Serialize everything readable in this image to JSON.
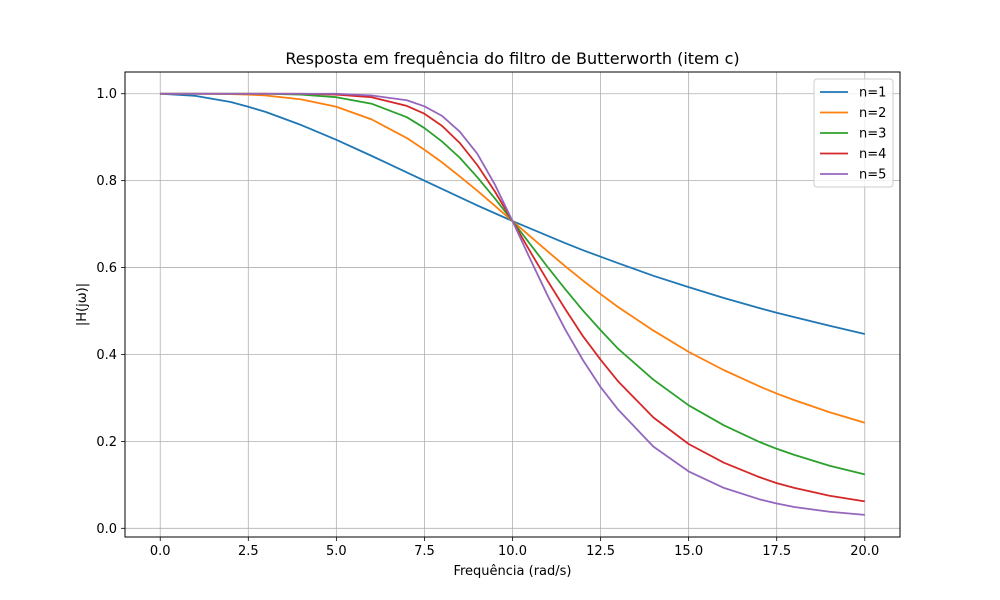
{
  "chart_data": {
    "type": "line",
    "title": "Resposta em frequência do filtro de Butterworth (item c)",
    "xlabel": "Frequência (rad/s)",
    "ylabel": "|H(jω)|",
    "xlim": [
      -1.0,
      21.0
    ],
    "ylim": [
      -0.02,
      1.05
    ],
    "xticks": [
      0.0,
      2.5,
      5.0,
      7.5,
      10.0,
      12.5,
      15.0,
      17.5,
      20.0
    ],
    "xtick_labels": [
      "0.0",
      "2.5",
      "5.0",
      "7.5",
      "10.0",
      "12.5",
      "15.0",
      "17.5",
      "20.0"
    ],
    "yticks": [
      0.0,
      0.2,
      0.4,
      0.6,
      0.8,
      1.0
    ],
    "ytick_labels": [
      "0.0",
      "0.2",
      "0.4",
      "0.6",
      "0.8",
      "1.0"
    ],
    "grid": true,
    "legend_position": "top-right",
    "x": [
      0.0,
      1.0,
      2.0,
      2.5,
      3.0,
      4.0,
      5.0,
      6.0,
      7.0,
      7.5,
      8.0,
      8.5,
      9.0,
      9.5,
      10.0,
      10.5,
      11.0,
      11.5,
      12.0,
      12.5,
      13.0,
      14.0,
      15.0,
      16.0,
      17.0,
      17.5,
      18.0,
      19.0,
      20.0
    ],
    "series": [
      {
        "name": "n=1",
        "color": "#1f77b4",
        "values": [
          1.0,
          0.995,
          0.981,
          0.97,
          0.958,
          0.928,
          0.894,
          0.857,
          0.819,
          0.8,
          0.781,
          0.762,
          0.743,
          0.725,
          0.707,
          0.69,
          0.673,
          0.656,
          0.64,
          0.625,
          0.61,
          0.581,
          0.555,
          0.53,
          0.507,
          0.496,
          0.486,
          0.466,
          0.447
        ]
      },
      {
        "name": "n=2",
        "color": "#ff7f0e",
        "values": [
          1.0,
          1.0,
          0.999,
          0.998,
          0.996,
          0.987,
          0.97,
          0.941,
          0.898,
          0.871,
          0.842,
          0.81,
          0.777,
          0.742,
          0.707,
          0.672,
          0.637,
          0.603,
          0.57,
          0.539,
          0.509,
          0.455,
          0.406,
          0.364,
          0.327,
          0.31,
          0.295,
          0.267,
          0.243
        ]
      },
      {
        "name": "n=3",
        "color": "#2ca02c",
        "values": [
          1.0,
          1.0,
          1.0,
          1.0,
          1.0,
          0.998,
          0.992,
          0.977,
          0.946,
          0.921,
          0.89,
          0.853,
          0.808,
          0.759,
          0.707,
          0.654,
          0.601,
          0.55,
          0.501,
          0.456,
          0.413,
          0.342,
          0.283,
          0.237,
          0.199,
          0.183,
          0.169,
          0.144,
          0.124
        ]
      },
      {
        "name": "n=4",
        "color": "#d62728",
        "values": [
          1.0,
          1.0,
          1.0,
          1.0,
          1.0,
          1.0,
          0.998,
          0.992,
          0.972,
          0.954,
          0.926,
          0.887,
          0.836,
          0.775,
          0.707,
          0.637,
          0.569,
          0.504,
          0.442,
          0.388,
          0.338,
          0.255,
          0.194,
          0.151,
          0.118,
          0.104,
          0.093,
          0.075,
          0.062
        ]
      },
      {
        "name": "n=5",
        "color": "#9467bd",
        "values": [
          1.0,
          1.0,
          1.0,
          1.0,
          1.0,
          1.0,
          1.0,
          0.996,
          0.985,
          0.971,
          0.949,
          0.913,
          0.862,
          0.791,
          0.707,
          0.62,
          0.535,
          0.457,
          0.387,
          0.325,
          0.273,
          0.188,
          0.131,
          0.093,
          0.067,
          0.057,
          0.049,
          0.038,
          0.031
        ]
      }
    ]
  }
}
